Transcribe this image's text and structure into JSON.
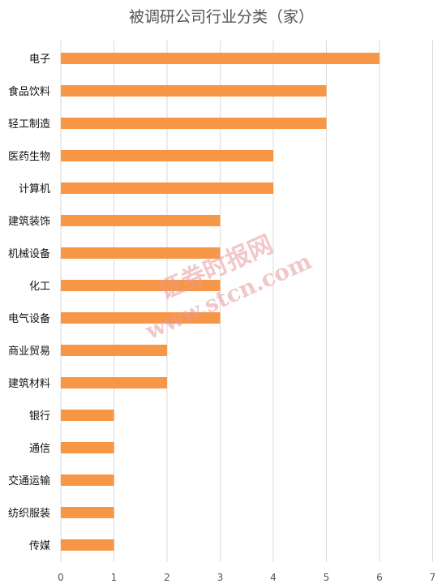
{
  "chart_data": {
    "type": "bar",
    "orientation": "horizontal",
    "title": "被调研公司行业分类（家）",
    "categories": [
      "电子",
      "食品饮料",
      "轻工制造",
      "医药生物",
      "计算机",
      "建筑装饰",
      "机械设备",
      "化工",
      "电气设备",
      "商业贸易",
      "建筑材料",
      "银行",
      "通信",
      "交通运输",
      "纺织服装",
      "传媒"
    ],
    "values": [
      6,
      5,
      5,
      4,
      4,
      3,
      3,
      3,
      3,
      2,
      2,
      1,
      1,
      1,
      1,
      1
    ],
    "xlim": [
      0,
      7
    ],
    "xticks": [
      "0",
      "1",
      "2",
      "3",
      "4",
      "5",
      "6",
      "7"
    ],
    "grid": true,
    "bar_color": "#F79646"
  },
  "watermark": {
    "line1": "证券时报网",
    "line2": "www.stcn.com"
  }
}
